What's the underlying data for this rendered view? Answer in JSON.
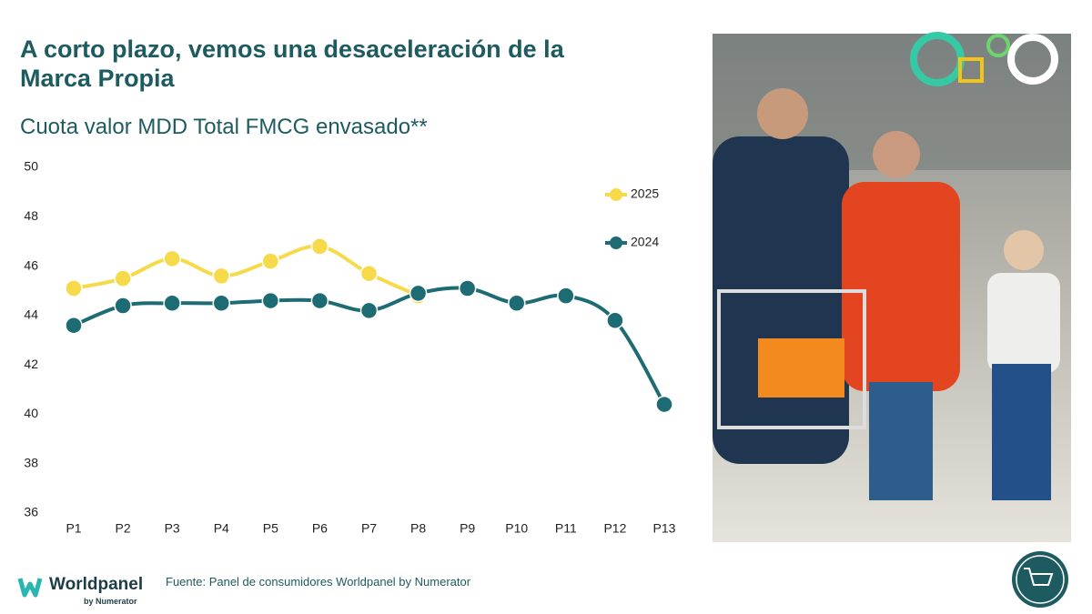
{
  "chart_data": {
    "type": "line",
    "title": "A corto plazo, vemos una desaceleración de la Marca Propia",
    "subtitle": "Cuota valor MDD Total FMCG envasado**",
    "categories": [
      "P1",
      "P2",
      "P3",
      "P4",
      "P5",
      "P6",
      "P7",
      "P8",
      "P9",
      "P10",
      "P11",
      "P12",
      "P13"
    ],
    "series": [
      {
        "name": "2025",
        "color": "#f7da4a",
        "values": [
          45.1,
          45.5,
          46.3,
          45.6,
          46.2,
          46.8,
          45.7,
          44.8,
          null,
          null,
          null,
          null,
          null
        ]
      },
      {
        "name": "2024",
        "color": "#1e6c73",
        "values": [
          43.6,
          44.4,
          44.5,
          44.5,
          44.6,
          44.6,
          44.2,
          44.9,
          45.1,
          44.5,
          44.8,
          43.8,
          40.4
        ]
      }
    ],
    "ylim": [
      36,
      50
    ],
    "yticks": [
      36,
      38,
      40,
      42,
      44,
      46,
      48,
      50
    ],
    "grid": false,
    "legend": "upper right"
  },
  "footer": {
    "logo": "Worldpanel",
    "logo_sub": "by Numerator",
    "source": "Fuente: Panel de consumidores Worldpanel by Numerator"
  }
}
